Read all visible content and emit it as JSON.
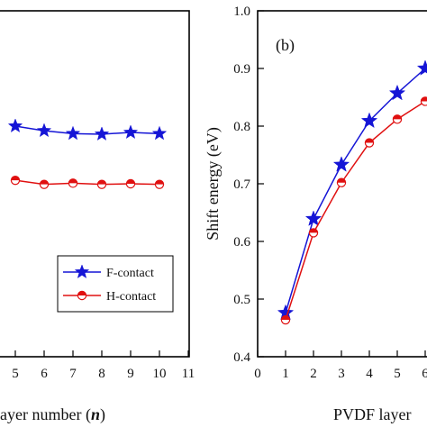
{
  "chart_data": [
    {
      "panel": "a",
      "type": "line",
      "xlabel_prefix": "ayer number (",
      "xlabel_var": "n",
      "xlabel_suffix": ")",
      "xlim": [
        0,
        11
      ],
      "ylim": [
        0.4,
        1.0
      ],
      "xticks_visible": [
        "5",
        "6",
        "7",
        "8",
        "9",
        "10",
        "11"
      ],
      "x": [
        5,
        6,
        7,
        8,
        9,
        10
      ],
      "legend": {
        "placement": "bottom-right"
      },
      "series": [
        {
          "name": "F-contact",
          "color": "#1515d6",
          "marker": "star",
          "values": [
            0.8,
            0.792,
            0.787,
            0.786,
            0.789,
            0.787
          ]
        },
        {
          "name": "H-contact",
          "color": "#e01010",
          "marker": "circle",
          "values": [
            0.706,
            0.699,
            0.701,
            0.699,
            0.7,
            0.699
          ]
        }
      ]
    },
    {
      "panel": "b",
      "type": "line",
      "panel_label": "(b)",
      "ylabel": "Shift energy (eV)",
      "xlabel": "PVDF layer",
      "xlim": [
        0,
        7
      ],
      "ylim": [
        0.4,
        1.0
      ],
      "xticks": [
        "0",
        "1",
        "2",
        "3",
        "4",
        "5",
        "6"
      ],
      "yticks": [
        "0.4",
        "0.5",
        "0.6",
        "0.7",
        "0.8",
        "0.9",
        "1.0"
      ],
      "x": [
        1,
        2,
        3,
        4,
        5,
        6
      ],
      "series": [
        {
          "name": "F-contact",
          "color": "#1515d6",
          "marker": "star",
          "values": [
            0.476,
            0.639,
            0.733,
            0.809,
            0.857,
            0.9
          ]
        },
        {
          "name": "H-contact",
          "color": "#e01010",
          "marker": "circle",
          "values": [
            0.464,
            0.615,
            0.702,
            0.771,
            0.812,
            0.843
          ]
        }
      ]
    }
  ]
}
